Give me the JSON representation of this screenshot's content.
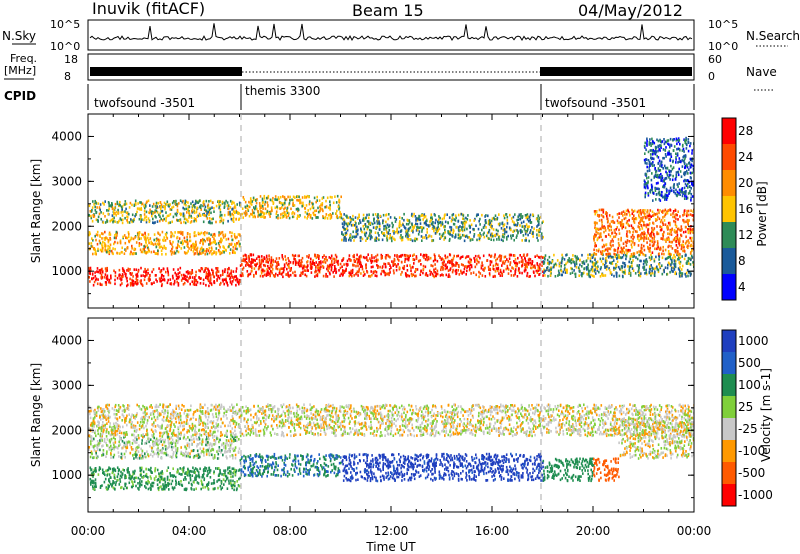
{
  "header": {
    "radar": "Inuvik (fitACF)",
    "beam": "Beam 15",
    "date": "04/May/2012"
  },
  "top_panel": {
    "left_label": "N.Sky",
    "left_ticks": [
      "10^5",
      "10^0"
    ],
    "right_label": "N.Search",
    "right_ticks": [
      "10^5",
      "10^0"
    ]
  },
  "freq_panel": {
    "left_label_1": "Freq.",
    "left_label_2": "[MHz]",
    "left_ticks": [
      "18",
      "8"
    ],
    "right_label": "Nave",
    "right_ticks": [
      "60",
      "0"
    ]
  },
  "cpid_panel": {
    "label": "CPID",
    "modes": [
      {
        "name": "twofsound -3501"
      },
      {
        "name": "themis 3300"
      },
      {
        "name": "twofsound -3501"
      }
    ]
  },
  "axes": {
    "xlabel": "Time UT",
    "ylabel": "Slant Range [km]",
    "xtick_labels": [
      "00:00",
      "04:00",
      "08:00",
      "12:00",
      "16:00",
      "20:00",
      "00:00"
    ],
    "ytick_labels": [
      "1000",
      "2000",
      "3000",
      "4000"
    ]
  },
  "power_colorbar": {
    "label": "Power [dB]",
    "ticks": [
      "28",
      "24",
      "20",
      "16",
      "12",
      "8",
      "4"
    ],
    "colors": [
      "#ff0000",
      "#ff4a00",
      "#ff8c00",
      "#ffc400",
      "#2e8b57",
      "#1a5a9a",
      "#0000ff"
    ]
  },
  "velocity_colorbar": {
    "label": "Velocity [m s-1]",
    "ticks": [
      "1000",
      "500",
      "100",
      "25",
      "-25",
      "-100",
      "-500",
      "-1000"
    ],
    "colors": [
      "#1f3fbf",
      "#2060c8",
      "#1e8d50",
      "#7fcf3a",
      "#c8c8c8",
      "#ff9900",
      "#ff5a00",
      "#ff0000"
    ]
  },
  "chart_data": [
    {
      "type": "heatmap",
      "name": "power",
      "x_range_hours": [
        0,
        24
      ],
      "y_range_km": [
        180,
        4500
      ],
      "value_units": "dB",
      "bands": [
        {
          "t_start": 0,
          "t_end": 6,
          "range_km": [
            700,
            1100
          ],
          "value": 28
        },
        {
          "t_start": 0,
          "t_end": 6,
          "range_km": [
            1400,
            1900
          ],
          "value": 18
        },
        {
          "t_start": 0,
          "t_end": 6,
          "range_km": [
            2100,
            2600
          ],
          "value": 14
        },
        {
          "t_start": 6,
          "t_end": 18,
          "range_km": [
            900,
            1400
          ],
          "value": 26
        },
        {
          "t_start": 6,
          "t_end": 10,
          "range_km": [
            2200,
            2700
          ],
          "value": 16
        },
        {
          "t_start": 10,
          "t_end": 18,
          "range_km": [
            1700,
            2300
          ],
          "value": 12
        },
        {
          "t_start": 18,
          "t_end": 24,
          "range_km": [
            900,
            1400
          ],
          "value": 12
        },
        {
          "t_start": 20,
          "t_end": 24,
          "range_km": [
            1400,
            2400
          ],
          "value": 22
        },
        {
          "t_start": 22,
          "t_end": 24,
          "range_km": [
            2600,
            4000
          ],
          "value": 8
        }
      ]
    },
    {
      "type": "heatmap",
      "name": "velocity",
      "x_range_hours": [
        0,
        24
      ],
      "y_range_km": [
        180,
        4500
      ],
      "value_units": "m s-1",
      "bands": [
        {
          "t_start": 0,
          "t_end": 6,
          "range_km": [
            700,
            1200
          ],
          "value": 100
        },
        {
          "t_start": 0,
          "t_end": 6,
          "range_km": [
            1400,
            1900
          ],
          "value": 25
        },
        {
          "t_start": 0,
          "t_end": 24,
          "range_km": [
            1900,
            2600
          ],
          "value": 0
        },
        {
          "t_start": 6,
          "t_end": 10,
          "range_km": [
            1000,
            1500
          ],
          "value": 300
        },
        {
          "t_start": 10,
          "t_end": 18,
          "range_km": [
            900,
            1500
          ],
          "value": 800
        },
        {
          "t_start": 18,
          "t_end": 20,
          "range_km": [
            900,
            1400
          ],
          "value": 200
        },
        {
          "t_start": 20,
          "t_end": 21,
          "range_km": [
            900,
            1400
          ],
          "value": -300
        },
        {
          "t_start": 21,
          "t_end": 24,
          "range_km": [
            1400,
            2300
          ],
          "value": 0
        }
      ]
    }
  ]
}
